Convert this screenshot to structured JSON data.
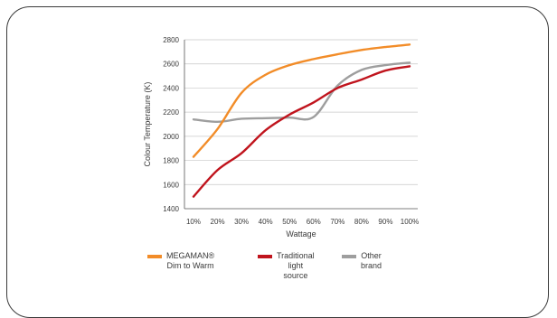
{
  "chart_data": {
    "type": "line",
    "categories": [
      "10%",
      "20%",
      "30%",
      "40%",
      "50%",
      "60%",
      "70%",
      "80%",
      "90%",
      "100%"
    ],
    "xlabel": "Wattage",
    "ylabel": "Colour Temperature (K)",
    "ylim": [
      1400,
      2800
    ],
    "yticks": [
      1400,
      1600,
      1800,
      2000,
      2200,
      2400,
      2600,
      2800
    ],
    "grid": true,
    "legend_position": "bottom",
    "series": [
      {
        "name_line1": "MEGAMAN®",
        "name_line2": "Dim to Warm",
        "color": "#f28c28",
        "values": [
          1830,
          2060,
          2360,
          2510,
          2590,
          2640,
          2680,
          2715,
          2740,
          2760
        ]
      },
      {
        "name_line1": "Traditional",
        "name_line2": "light source",
        "color": "#c0141d",
        "values": [
          1500,
          1720,
          1860,
          2050,
          2180,
          2280,
          2400,
          2470,
          2545,
          2580
        ]
      },
      {
        "name_line1": "Other brand",
        "name_line2": "",
        "color": "#9e9e9e",
        "values": [
          2140,
          2120,
          2145,
          2150,
          2155,
          2160,
          2420,
          2550,
          2590,
          2610
        ]
      }
    ]
  }
}
